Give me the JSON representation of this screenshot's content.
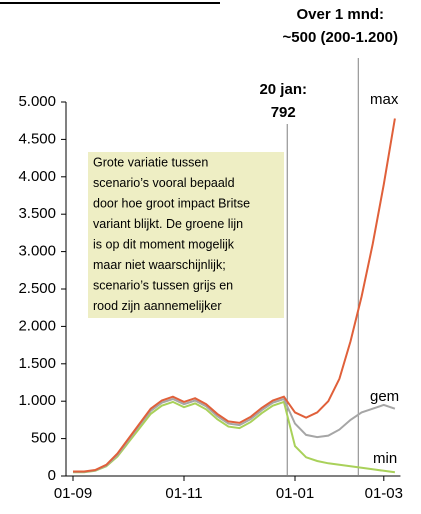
{
  "chart_data": {
    "type": "line",
    "categories": [
      "01-09",
      null,
      null,
      null,
      null,
      null,
      null,
      null,
      null,
      null,
      "01-11",
      null,
      null,
      null,
      null,
      null,
      null,
      null,
      null,
      null,
      "01-01",
      null,
      null,
      null,
      null,
      null,
      null,
      null,
      "01-03",
      null
    ],
    "series": [
      {
        "name": "max",
        "color": "#e0603a",
        "values": [
          60,
          60,
          80,
          150,
          300,
          500,
          700,
          900,
          1010,
          1060,
          990,
          1040,
          960,
          830,
          730,
          710,
          790,
          910,
          1010,
          1060,
          850,
          780,
          850,
          1000,
          1300,
          1800,
          2400,
          3100,
          3900,
          4780
        ]
      },
      {
        "name": "gem",
        "color": "#a6a6a6",
        "values": [
          55,
          55,
          75,
          140,
          280,
          480,
          680,
          870,
          980,
          1030,
          960,
          1010,
          930,
          800,
          700,
          680,
          760,
          880,
          980,
          1030,
          700,
          550,
          520,
          540,
          620,
          750,
          850,
          900,
          950,
          900
        ]
      },
      {
        "name": "min",
        "color": "#a9d15a",
        "values": [
          50,
          50,
          70,
          130,
          260,
          450,
          640,
          830,
          940,
          990,
          920,
          970,
          890,
          760,
          660,
          640,
          720,
          840,
          940,
          990,
          400,
          250,
          200,
          170,
          150,
          130,
          110,
          90,
          70,
          50
        ]
      }
    ],
    "ylim": [
      0,
      5000
    ],
    "yticks": [
      0,
      {
        "value": 500,
        "label": "500"
      },
      {
        "value": 1000,
        "label": "1.000"
      },
      {
        "value": 1500,
        "label": "1.500"
      },
      {
        "value": 2000,
        "label": "2.000"
      },
      {
        "value": 2500,
        "label": "2.500"
      },
      {
        "value": 3000,
        "label": "3.000"
      },
      {
        "value": 3500,
        "label": "3.500"
      },
      {
        "value": 4000,
        "label": "4.000"
      },
      {
        "value": 4500,
        "label": "4.500"
      },
      {
        "value": 5000,
        "label": "5.000"
      }
    ],
    "grid": false,
    "annotations": [
      {
        "x": 19.3,
        "lines": [
          "20 jan:",
          "792"
        ]
      },
      {
        "x": 25.7,
        "lines": [
          "Over 1 mnd:",
          "~500 (200-1.200)"
        ]
      }
    ],
    "note": [
      "Grote variatie tussen",
      "scenario’s vooral bepaald",
      "door hoe groot impact Britse",
      "variant blijkt. De groene lijn",
      "is op dit moment mogelijk",
      "maar niet waarschijnlijk;",
      "scenario’s tussen grijs en",
      "rood zijn aannemelijker"
    ]
  }
}
